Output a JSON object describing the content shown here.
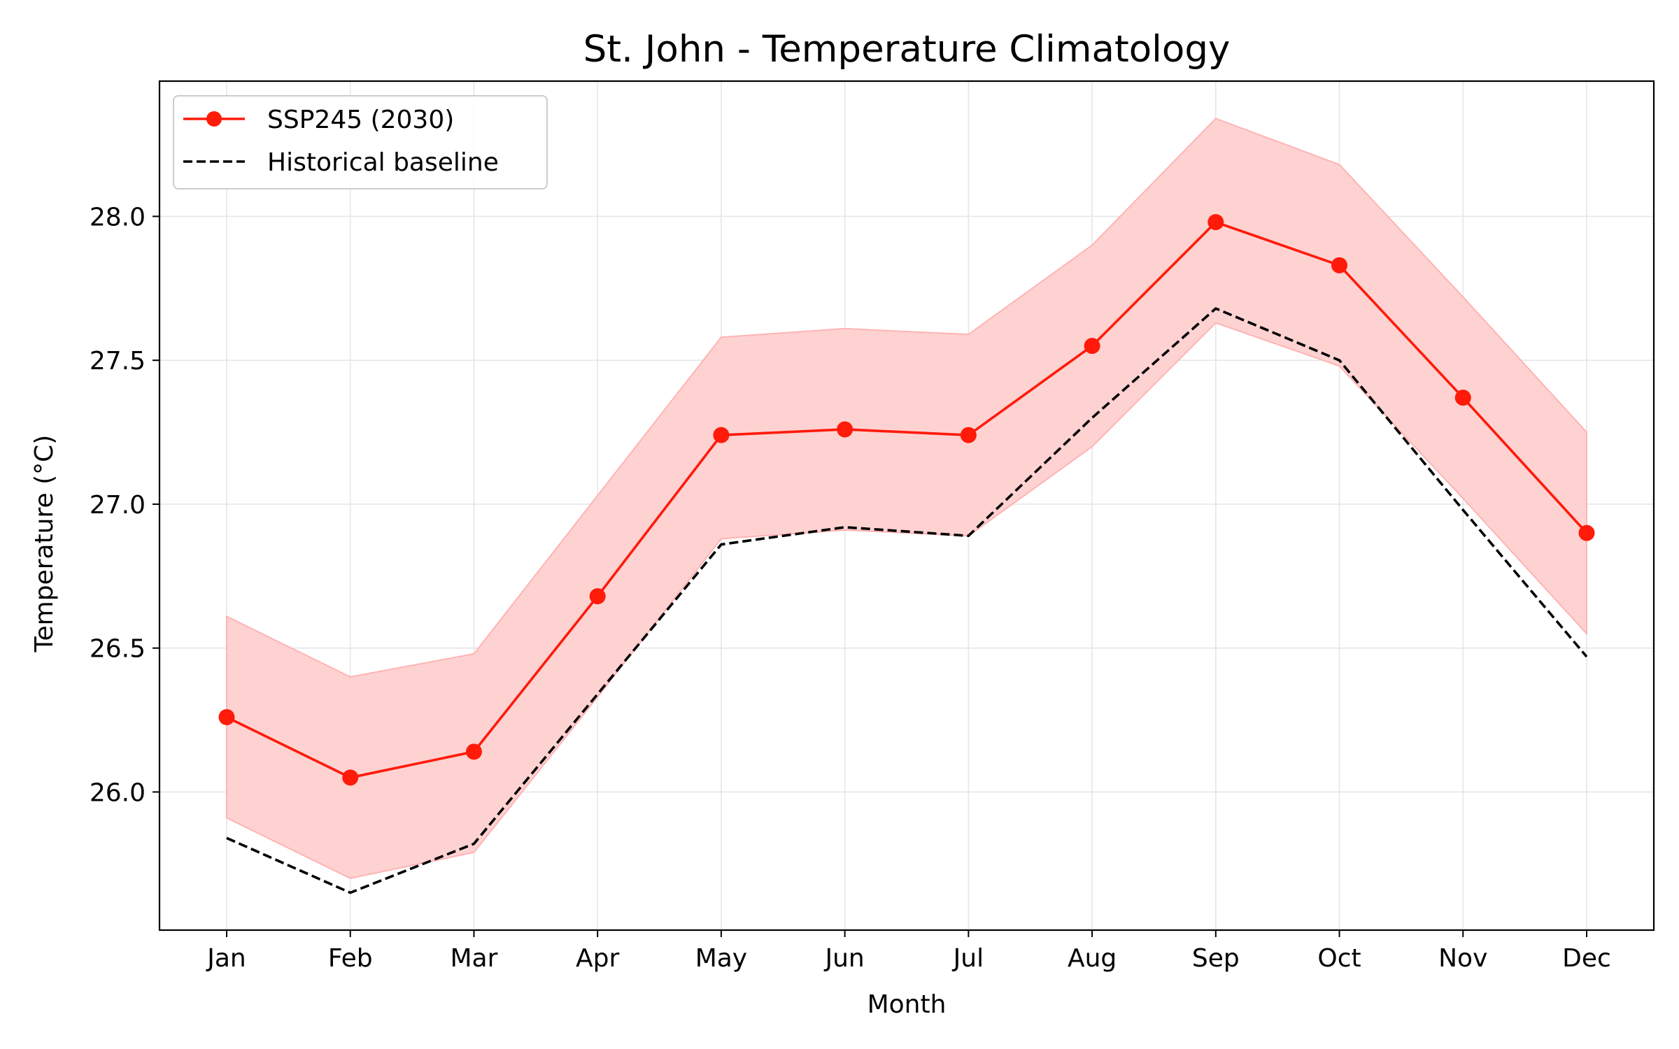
{
  "chart_data": {
    "type": "line",
    "title": "St. John - Temperature Climatology",
    "xlabel": "Month",
    "ylabel": "Temperature (°C)",
    "categories": [
      "Jan",
      "Feb",
      "Mar",
      "Apr",
      "May",
      "Jun",
      "Jul",
      "Aug",
      "Sep",
      "Oct",
      "Nov",
      "Dec"
    ],
    "ylim": [
      25.52,
      28.47
    ],
    "yticks": [
      "26.0",
      "26.5",
      "27.0",
      "27.5",
      "28.0"
    ],
    "grid": true,
    "legend_position": "upper-left",
    "series": [
      {
        "name": "SSP245 (2030)",
        "style": "solid-with-markers",
        "color": "#ff1a0a",
        "values": [
          26.26,
          26.05,
          26.14,
          26.68,
          27.24,
          27.26,
          27.24,
          27.55,
          27.98,
          27.83,
          27.37,
          26.9
        ],
        "band_upper": [
          26.61,
          26.4,
          26.48,
          27.03,
          27.58,
          27.61,
          27.59,
          27.9,
          28.34,
          28.18,
          27.72,
          27.25
        ],
        "band_lower": [
          25.91,
          25.7,
          25.79,
          26.33,
          26.88,
          26.91,
          26.89,
          27.2,
          27.63,
          27.48,
          27.02,
          26.55
        ],
        "band_color": "#ffd2d2"
      },
      {
        "name": "Historical baseline",
        "style": "dashed",
        "color": "#000000",
        "values": [
          25.84,
          25.65,
          25.82,
          26.34,
          26.86,
          26.92,
          26.89,
          27.3,
          27.68,
          27.5,
          26.98,
          26.47
        ]
      }
    ]
  }
}
